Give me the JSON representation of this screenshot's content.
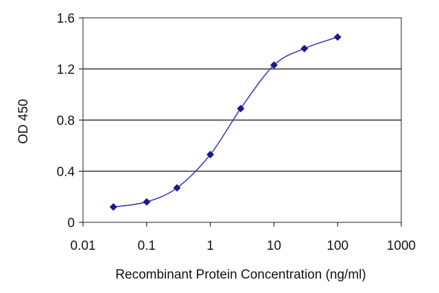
{
  "chart_data": {
    "type": "line",
    "title": "",
    "xlabel": "Recombinant Protein Concentration (ng/ml)",
    "ylabel": "OD 450",
    "x_scale": "log",
    "xlim": [
      0.01,
      1000
    ],
    "ylim": [
      0,
      1.6
    ],
    "x_tick_labels": [
      "0.01",
      "0.1",
      "1",
      "10",
      "100",
      "1000"
    ],
    "y_tick_labels": [
      "0",
      "0.4",
      "0.8",
      "1.2",
      "1.6"
    ],
    "x_ticks": [
      0.01,
      0.1,
      1,
      10,
      100,
      1000
    ],
    "y_ticks": [
      0,
      0.4,
      0.8,
      1.2,
      1.6
    ],
    "grid": "horizontal",
    "series": [
      {
        "color": "#3b3bbf",
        "marker_color": "#1a1a8c",
        "x": [
          0.03,
          0.1,
          0.3,
          1,
          3,
          10,
          30,
          100
        ],
        "y": [
          0.12,
          0.16,
          0.27,
          0.53,
          0.89,
          1.23,
          1.36,
          1.45
        ]
      }
    ]
  }
}
